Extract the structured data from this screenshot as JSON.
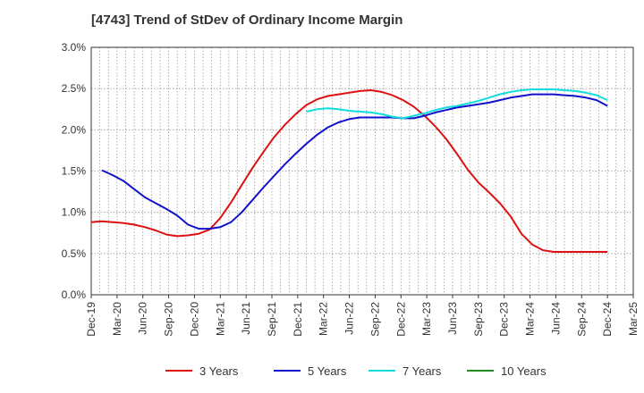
{
  "chart_data": {
    "type": "line",
    "title": "[4743]  Trend of StDev of Ordinary Income Margin",
    "xlabel": "",
    "ylabel": "",
    "ylim": [
      0,
      3.0
    ],
    "yticks": [
      "0.0%",
      "0.5%",
      "1.0%",
      "1.5%",
      "2.0%",
      "2.5%",
      "3.0%"
    ],
    "xticks": [
      "Dec-19",
      "Mar-20",
      "Jun-20",
      "Sep-20",
      "Dec-20",
      "Mar-21",
      "Jun-21",
      "Sep-21",
      "Dec-21",
      "Mar-22",
      "Jun-22",
      "Sep-22",
      "Dec-22",
      "Mar-23",
      "Jun-23",
      "Sep-23",
      "Dec-23",
      "Mar-24",
      "Jun-24",
      "Sep-24",
      "Dec-24",
      "Mar-25"
    ],
    "grid": true,
    "legend_position": "bottom",
    "series": [
      {
        "name": "3 Years",
        "color": "#dd1111",
        "points": [
          [
            0,
            0.88
          ],
          [
            1,
            0.89
          ],
          [
            2,
            0.88
          ],
          [
            3,
            0.87
          ],
          [
            4,
            0.85
          ],
          [
            5,
            0.82
          ],
          [
            6,
            0.78
          ],
          [
            7,
            0.73
          ],
          [
            8,
            0.71
          ],
          [
            9,
            0.72
          ],
          [
            10,
            0.74
          ],
          [
            11,
            0.79
          ],
          [
            12,
            0.93
          ],
          [
            13,
            1.12
          ],
          [
            14,
            1.33
          ],
          [
            15,
            1.54
          ],
          [
            16,
            1.73
          ],
          [
            17,
            1.91
          ],
          [
            18,
            2.06
          ],
          [
            19,
            2.19
          ],
          [
            20,
            2.3
          ],
          [
            21,
            2.37
          ],
          [
            22,
            2.41
          ],
          [
            23,
            2.43
          ],
          [
            24,
            2.45
          ],
          [
            25,
            2.47
          ],
          [
            26,
            2.48
          ],
          [
            27,
            2.46
          ],
          [
            28,
            2.42
          ],
          [
            29,
            2.36
          ],
          [
            30,
            2.28
          ],
          [
            31,
            2.17
          ],
          [
            32,
            2.04
          ],
          [
            33,
            1.89
          ],
          [
            34,
            1.71
          ],
          [
            35,
            1.52
          ],
          [
            36,
            1.36
          ],
          [
            37,
            1.24
          ],
          [
            38,
            1.11
          ],
          [
            39,
            0.95
          ],
          [
            40,
            0.74
          ],
          [
            41,
            0.61
          ],
          [
            42,
            0.54
          ],
          [
            43,
            0.52
          ],
          [
            44,
            0.52
          ],
          [
            45,
            0.52
          ],
          [
            46,
            0.52
          ],
          [
            47,
            0.52
          ],
          [
            48,
            0.52
          ]
        ]
      },
      {
        "name": "5 Years",
        "color": "#1111cc",
        "points": [
          [
            1,
            1.51
          ],
          [
            2,
            1.45
          ],
          [
            3,
            1.38
          ],
          [
            4,
            1.28
          ],
          [
            5,
            1.18
          ],
          [
            6,
            1.11
          ],
          [
            7,
            1.04
          ],
          [
            8,
            0.96
          ],
          [
            9,
            0.85
          ],
          [
            10,
            0.8
          ],
          [
            11,
            0.8
          ],
          [
            12,
            0.82
          ],
          [
            13,
            0.88
          ],
          [
            14,
            1.0
          ],
          [
            15,
            1.15
          ],
          [
            16,
            1.3
          ],
          [
            17,
            1.44
          ],
          [
            18,
            1.58
          ],
          [
            19,
            1.71
          ],
          [
            20,
            1.83
          ],
          [
            21,
            1.94
          ],
          [
            22,
            2.03
          ],
          [
            23,
            2.09
          ],
          [
            24,
            2.13
          ],
          [
            25,
            2.15
          ],
          [
            26,
            2.15
          ],
          [
            27,
            2.15
          ],
          [
            28,
            2.15
          ],
          [
            29,
            2.14
          ],
          [
            30,
            2.14
          ],
          [
            31,
            2.17
          ],
          [
            32,
            2.21
          ],
          [
            33,
            2.24
          ],
          [
            34,
            2.27
          ],
          [
            35,
            2.29
          ],
          [
            36,
            2.31
          ],
          [
            37,
            2.33
          ],
          [
            38,
            2.36
          ],
          [
            39,
            2.39
          ],
          [
            40,
            2.41
          ],
          [
            41,
            2.43
          ],
          [
            42,
            2.43
          ],
          [
            43,
            2.43
          ],
          [
            44,
            2.42
          ],
          [
            45,
            2.41
          ],
          [
            46,
            2.39
          ],
          [
            47,
            2.36
          ],
          [
            48,
            2.29
          ]
        ]
      },
      {
        "name": "7 Years",
        "color": "#11dddd",
        "points": [
          [
            20,
            2.22
          ],
          [
            21,
            2.25
          ],
          [
            22,
            2.26
          ],
          [
            23,
            2.25
          ],
          [
            24,
            2.23
          ],
          [
            25,
            2.22
          ],
          [
            26,
            2.21
          ],
          [
            27,
            2.19
          ],
          [
            28,
            2.16
          ],
          [
            29,
            2.14
          ],
          [
            30,
            2.17
          ],
          [
            31,
            2.2
          ],
          [
            32,
            2.24
          ],
          [
            33,
            2.27
          ],
          [
            34,
            2.29
          ],
          [
            35,
            2.32
          ],
          [
            36,
            2.35
          ],
          [
            37,
            2.39
          ],
          [
            38,
            2.43
          ],
          [
            39,
            2.46
          ],
          [
            40,
            2.48
          ],
          [
            41,
            2.49
          ],
          [
            42,
            2.49
          ],
          [
            43,
            2.49
          ],
          [
            44,
            2.48
          ],
          [
            45,
            2.47
          ],
          [
            46,
            2.45
          ],
          [
            47,
            2.42
          ],
          [
            48,
            2.36
          ]
        ]
      },
      {
        "name": "10 Years",
        "color": "#228b22",
        "points": []
      }
    ]
  }
}
